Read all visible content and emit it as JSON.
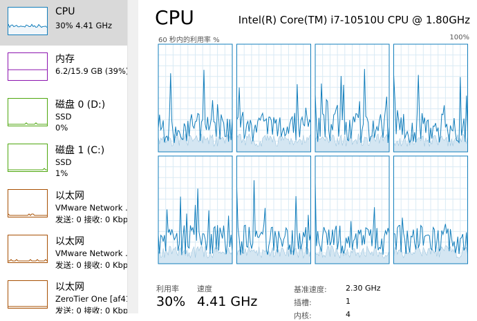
{
  "sidebar": {
    "items": [
      {
        "title": "CPU",
        "lines": [
          "30% 4.41 GHz"
        ],
        "color": "#117dbb",
        "selected": true
      },
      {
        "title": "内存",
        "lines": [
          "6.2/15.9 GB (39%)"
        ],
        "color": "#8b12ae"
      },
      {
        "title": "磁盘 0 (D:)",
        "lines": [
          "SSD",
          "0%"
        ],
        "color": "#4da60c"
      },
      {
        "title": "磁盘 1 (C:)",
        "lines": [
          "SSD",
          "1%"
        ],
        "color": "#4da60c"
      },
      {
        "title": "以太网",
        "lines": [
          "VMware Network .",
          "发送: 0 接收: 0 Kbp"
        ],
        "color": "#a74f01"
      },
      {
        "title": "以太网",
        "lines": [
          "VMware Network .",
          "发送: 0 接收: 0 Kbp"
        ],
        "color": "#a74f01"
      },
      {
        "title": "以太网",
        "lines": [
          "ZeroTier One [af41",
          "发送: 0 接收: 0 Kbp"
        ],
        "color": "#a74f01"
      }
    ]
  },
  "panel": {
    "title": "CPU",
    "model": "Intel(R) Core(TM) i7-10510U CPU @ 1.80GHz",
    "graph_label": "60 秒内的利用率 %",
    "graph_max": "100%",
    "stats": [
      {
        "label": "利用率",
        "value": "30%"
      },
      {
        "label": "速度",
        "value": "4.41 GHz"
      }
    ],
    "specs": [
      {
        "label": "基准速度:",
        "value": "2.30 GHz"
      },
      {
        "label": "插槽:",
        "value": "1"
      },
      {
        "label": "内核:",
        "value": "4"
      }
    ]
  }
}
